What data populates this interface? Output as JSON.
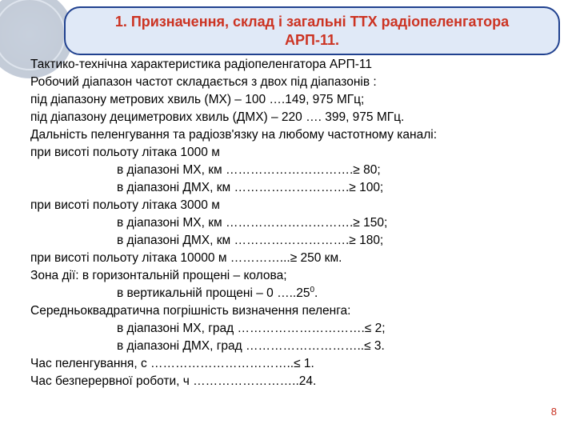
{
  "header": {
    "title_line1": "1. Призначення, склад і загальні ТТХ радіопеленгатора",
    "title_line2": "АРП-11."
  },
  "lines": {
    "l00": "Тактико-технічна характеристика радіопеленгатора АРП-11",
    "l01": "Робочий діапазон частот складається з двох під діапазонів :",
    "l02": "під діапазону метрових хвиль (МХ) – 100 ….149, 975 МГц;",
    "l03": "під діапазону дециметрових хвиль (ДМХ) – 220 …. 399, 975 МГц.",
    "l04": "Дальність пеленгування та радіозв'язку на любому частотному каналі:",
    "l05": "при висоті польоту літака 1000 м",
    "l06": "в діапазоні МХ, км ………………………….≥ 80;",
    "l07": "в діапазоні ДМХ, км ……………………….≥ 100;",
    "l08": "при висоті польоту літака 3000 м",
    "l09": "в діапазоні МХ, км ………………………….≥ 150;",
    "l10": "в діапазоні ДМХ, км ……………………….≥ 180;",
    "l11": "при висоті польоту літака 10000 м …………...≥ 250 км.",
    "l12": "Зона дії: в горизонтальній прощені – колова;",
    "l13_pre": "в вертикальній прощені – 0 …..25",
    "l13_sup": "0",
    "l13_post": ".",
    "l14": "Середньоквадратична погрішність визначення пеленга:",
    "l15": "в діапазоні МХ, град ………………………….≤ 2;",
    "l16": "в діапазоні ДМХ, град ………………………..≤ 3.",
    "l17": "Час пеленгування, с ……………………………..≤ 1.",
    "l18": "Час безперервної роботи, ч ……………………..24."
  },
  "page_number": "8",
  "style": {
    "header_bg": "#e0e9f7",
    "header_border": "#20418f",
    "header_text_color": "#cc3322",
    "body_text_color": "#000000",
    "page_num_color": "#c83020",
    "background_color": "#ffffff"
  }
}
